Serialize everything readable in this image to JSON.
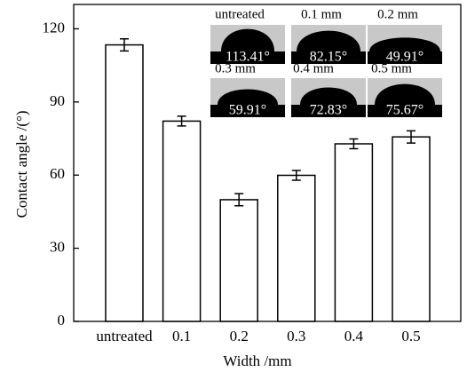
{
  "chart_data": {
    "type": "bar",
    "x_label": "Width /mm",
    "y_label": "Contact angle /(°)",
    "categories": [
      "untreated",
      "0.1",
      "0.2",
      "0.3",
      "0.4",
      "0.5"
    ],
    "values": [
      113.41,
      82.15,
      49.91,
      59.91,
      72.83,
      75.67
    ],
    "errors": [
      2.5,
      2,
      2.5,
      2,
      2,
      2.5
    ],
    "value_labels": [
      "113.41°",
      "82.15°",
      "49.91°",
      "59.91°",
      "72.83°",
      "75.67°"
    ],
    "inset_titles": [
      "untreated",
      "0.1 mm",
      "0.2 mm",
      "0.3 mm",
      "0.4 mm",
      "0.5 mm"
    ],
    "color": "#ffffff",
    "ylim": [
      0,
      130
    ],
    "yticks": [
      0,
      30,
      60,
      90,
      120
    ]
  }
}
